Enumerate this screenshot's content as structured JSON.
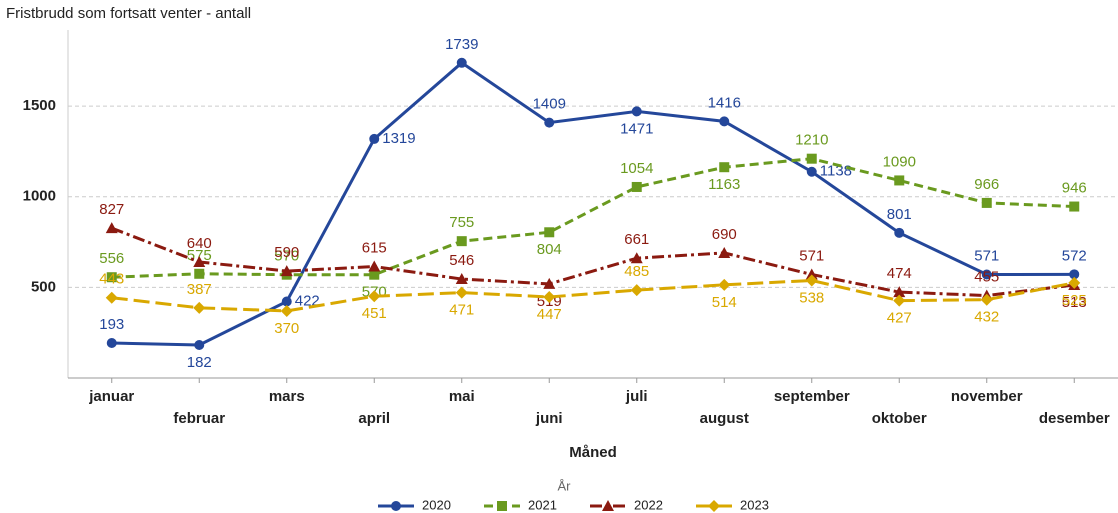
{
  "chart_data": {
    "type": "line",
    "title": "Fristbrudd som fortsatt venter - antall",
    "x_label": "Måned",
    "legend_title": "År",
    "categories": [
      "januar",
      "februar",
      "mars",
      "april",
      "mai",
      "juni",
      "juli",
      "august",
      "september",
      "oktober",
      "november",
      "desember"
    ],
    "series": [
      {
        "name": "2020",
        "color": "#24479a",
        "values": [
          193,
          182,
          422,
          1319,
          1739,
          1409,
          1471,
          1416,
          1138,
          801,
          571,
          572
        ]
      },
      {
        "name": "2021",
        "color": "#6a9a1f",
        "values": [
          556,
          575,
          570,
          570,
          755,
          804,
          1054,
          1163,
          1210,
          1090,
          966,
          946
        ]
      },
      {
        "name": "2022",
        "color": "#8b1a10",
        "values": [
          827,
          640,
          590,
          615,
          546,
          519,
          661,
          690,
          571,
          474,
          455,
          513
        ]
      },
      {
        "name": "2023",
        "color": "#d9a800",
        "values": [
          443,
          387,
          370,
          451,
          471,
          447,
          485,
          514,
          538,
          427,
          432,
          525
        ]
      }
    ],
    "ylim": [
      0,
      1920
    ],
    "yticks": [
      500,
      1000,
      1500
    ],
    "grid": true,
    "legend": "bottom"
  }
}
